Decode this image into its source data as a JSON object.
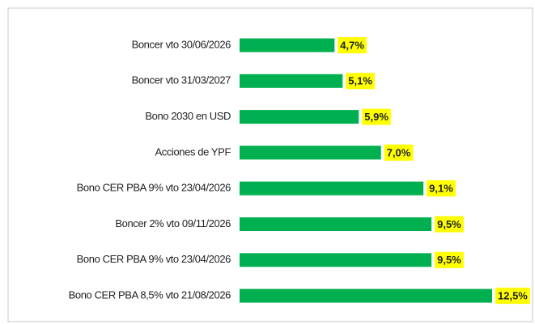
{
  "chart_data": {
    "type": "bar",
    "orientation": "horizontal",
    "categories": [
      "Boncer vto 30/06/2026",
      "Boncer vto 31/03/2027",
      "Bono 2030 en USD",
      "Acciones de YPF",
      "Bono CER PBA 9% vto 23/04/2026",
      "Boncer 2% vto 09/11/2026",
      "Bono CER PBA 9% vto 23/04/2026",
      "Bono CER PBA 8,5% vto 21/08/2026"
    ],
    "values": [
      4.7,
      5.1,
      5.9,
      7.0,
      9.1,
      9.5,
      9.5,
      12.5
    ],
    "value_labels": [
      "4,7%",
      "5,1%",
      "5,9%",
      "7,0%",
      "9,1%",
      "9,5%",
      "9,5%",
      "12,5%"
    ],
    "color": "#00b050",
    "label_background": "#ffff00"
  }
}
